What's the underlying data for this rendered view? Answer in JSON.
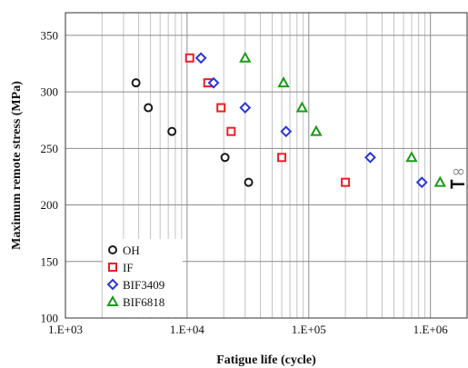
{
  "chart_data": {
    "type": "scatter",
    "xlabel": "Fatigue life (cycle)",
    "ylabel": "Maximum remote stress (MPa)",
    "x_scale": "log",
    "xlim": [
      1000,
      2000000
    ],
    "ylim": [
      100,
      370
    ],
    "x_ticks": [
      {
        "value": 1000,
        "label": "1.E+03"
      },
      {
        "value": 10000,
        "label": "1.E+04"
      },
      {
        "value": 100000,
        "label": "1.E+05"
      },
      {
        "value": 1000000,
        "label": "1.E+06"
      }
    ],
    "y_ticks": [
      100,
      150,
      200,
      250,
      300,
      350
    ],
    "grid": true,
    "legend_position": "bottom-left",
    "series": [
      {
        "name": "OH",
        "marker": "circle",
        "color": "#1a1a1a",
        "points": [
          [
            3800,
            308
          ],
          [
            4800,
            286
          ],
          [
            7500,
            265
          ],
          [
            20500,
            242
          ],
          [
            32000,
            220
          ]
        ]
      },
      {
        "name": "IF",
        "marker": "square",
        "color": "#ee1c24",
        "points": [
          [
            10500,
            330
          ],
          [
            14800,
            308
          ],
          [
            19000,
            286
          ],
          [
            23000,
            265
          ],
          [
            60000,
            242
          ],
          [
            200000,
            220
          ]
        ]
      },
      {
        "name": "BIF3409",
        "marker": "diamond",
        "color": "#2b35d6",
        "points": [
          [
            13000,
            330
          ],
          [
            16500,
            308
          ],
          [
            30000,
            286
          ],
          [
            65000,
            265
          ],
          [
            320000,
            242
          ],
          [
            850000,
            220
          ]
        ]
      },
      {
        "name": "BIF6818",
        "marker": "triangle",
        "color": "#1a9a1a",
        "points": [
          [
            30000,
            330
          ],
          [
            62000,
            308
          ],
          [
            88000,
            286
          ],
          [
            115000,
            265
          ],
          [
            700000,
            242
          ],
          [
            1200000,
            220
          ]
        ]
      }
    ],
    "annotations": [
      {
        "type": "runout",
        "label": "∞",
        "x": 1700000,
        "y": 229,
        "color": "#888888"
      }
    ]
  }
}
